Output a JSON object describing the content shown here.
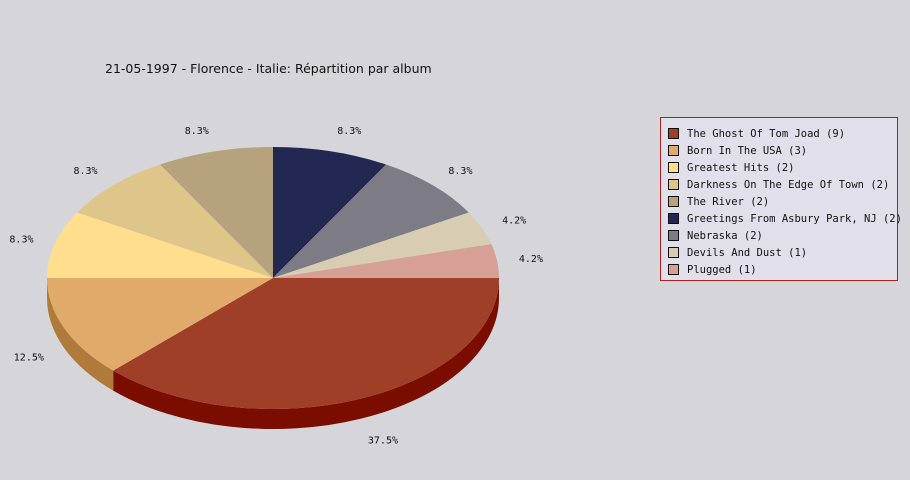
{
  "chart_data": {
    "type": "pie",
    "title": "21-05-1997 - Florence - Italie:  Répartition par album",
    "slices": [
      {
        "label": "The Ghost Of Tom Joad",
        "value": 9,
        "percent": "37.5%",
        "color": "#a03f28",
        "side_color": "#7a0c00"
      },
      {
        "label": "Born In The USA",
        "value": 3,
        "percent": "12.5%",
        "color": "#e0aa6a",
        "side_color": "#b07a3a"
      },
      {
        "label": "Greatest Hits",
        "value": 2,
        "percent": "8.3%",
        "color": "#ffdf8e",
        "side_color": "#c0a060"
      },
      {
        "label": "Darkness On The Edge Of Town",
        "value": 2,
        "percent": "8.3%",
        "color": "#dec68a",
        "side_color": "#a89060"
      },
      {
        "label": "The River",
        "value": 2,
        "percent": "8.3%",
        "color": "#b6a37d",
        "side_color": "#8a7a5a"
      },
      {
        "label": "Greetings From Asbury Park, NJ",
        "value": 2,
        "percent": "8.3%",
        "color": "#232852",
        "side_color": "#101330"
      },
      {
        "label": "Nebraska",
        "value": 2,
        "percent": "8.3%",
        "color": "#7c7b86",
        "side_color": "#55545e"
      },
      {
        "label": "Devils And Dust",
        "value": 1,
        "percent": "4.2%",
        "color": "#d8ccb2",
        "side_color": "#a89c84"
      },
      {
        "label": "Plugged",
        "value": 1,
        "percent": "4.2%",
        "color": "#d6a096",
        "side_color": "#a0706a"
      }
    ],
    "legend": {
      "position": "right",
      "items": [
        "The Ghost Of Tom Joad (9)",
        "Born In The USA (3)",
        "Greatest Hits (2)",
        "Darkness On The Edge Of Town (2)",
        "The River (2)",
        "Greetings From Asbury Park, NJ (2)",
        "Nebraska (2)",
        "Devils And Dust (1)",
        "Plugged (1)"
      ]
    }
  }
}
